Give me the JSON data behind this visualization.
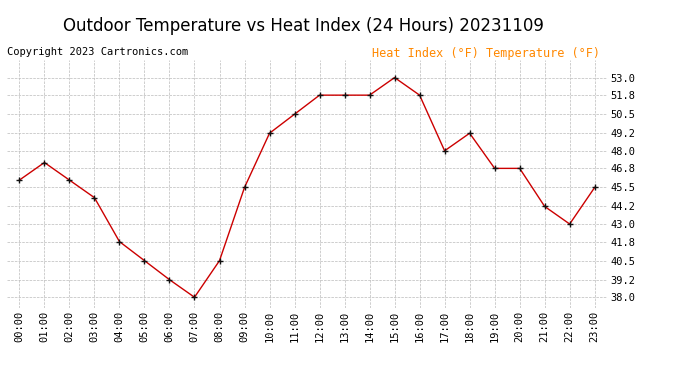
{
  "title": "Outdoor Temperature vs Heat Index (24 Hours) 20231109",
  "copyright": "Copyright 2023 Cartronics.com",
  "legend_text": "Heat Index (°F) Temperature (°F)",
  "line_color": "#cc0000",
  "background_color": "#ffffff",
  "grid_color": "#bbbbbb",
  "hours": [
    "00:00",
    "01:00",
    "02:00",
    "03:00",
    "04:00",
    "05:00",
    "06:00",
    "07:00",
    "08:00",
    "09:00",
    "10:00",
    "11:00",
    "12:00",
    "13:00",
    "14:00",
    "15:00",
    "16:00",
    "17:00",
    "18:00",
    "19:00",
    "20:00",
    "21:00",
    "22:00",
    "23:00"
  ],
  "temperatures": [
    46.0,
    47.2,
    46.0,
    44.8,
    41.8,
    40.5,
    39.2,
    38.0,
    40.5,
    45.5,
    49.2,
    50.5,
    51.8,
    51.8,
    51.8,
    53.0,
    51.8,
    48.0,
    49.2,
    46.8,
    46.8,
    44.2,
    43.0,
    45.5
  ],
  "ylim_min": 37.3,
  "ylim_max": 54.2,
  "yticks": [
    38.0,
    39.2,
    40.5,
    41.8,
    43.0,
    44.2,
    45.5,
    46.8,
    48.0,
    49.2,
    50.5,
    51.8,
    53.0
  ],
  "title_fontsize": 12,
  "copyright_fontsize": 7.5,
  "legend_fontsize": 8.5,
  "tick_fontsize": 7.5,
  "figsize": [
    6.9,
    3.75
  ],
  "dpi": 100
}
